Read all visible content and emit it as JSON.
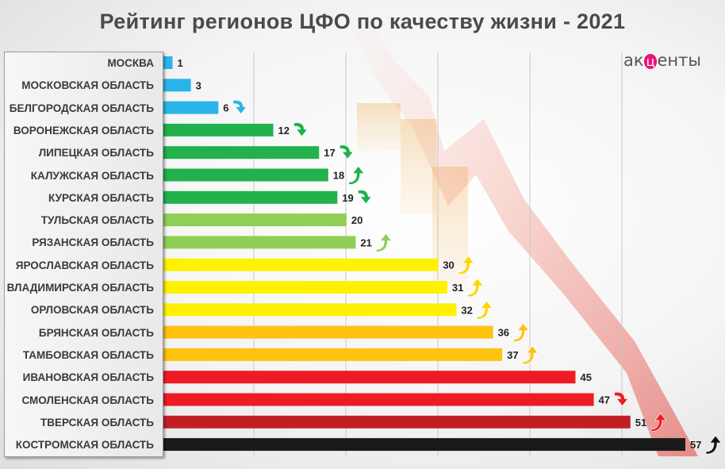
{
  "chart_data": {
    "type": "bar",
    "orientation": "horizontal",
    "title": "Рейтинг регионов ЦФО по качеству жизни - 2021",
    "xlim": [
      0,
      57
    ],
    "grid": true,
    "categories": [
      "Москва",
      "Московская область",
      "Белгородская область",
      "Воронежская область",
      "Липецкая область",
      "Калужская область",
      "Курская область",
      "Тульская область",
      "Рязанская область",
      "Ярославская область",
      "Владимирская область",
      "Орловская область",
      "Брянская область",
      "Тамбовская область",
      "Ивановская область",
      "Смоленская область",
      "Тверская область",
      "Костромская область"
    ],
    "values": [
      1,
      3,
      6,
      12,
      17,
      18,
      19,
      20,
      21,
      30,
      31,
      32,
      36,
      37,
      45,
      47,
      51,
      57
    ],
    "bar_colors": [
      "#29b5ea",
      "#29b5ea",
      "#29b5ea",
      "#22b14c",
      "#22b14c",
      "#22b14c",
      "#22b14c",
      "#8fcf55",
      "#8fcf55",
      "#fff200",
      "#fff200",
      "#fff200",
      "#ffc20e",
      "#ffc20e",
      "#ed1c24",
      "#ed1c24",
      "#c41e25",
      "#1a1a1a"
    ],
    "trend_arrows": [
      "",
      "",
      "down",
      "down",
      "down",
      "up",
      "down",
      "",
      "up",
      "up",
      "up",
      "up",
      "up",
      "up",
      "",
      "down",
      "up",
      "up"
    ],
    "arrow_colors": {
      "#29b5ea": "#29b5ea",
      "#22b14c": "#22b14c",
      "#8fcf55": "#8fcf55",
      "#fff200": "#ffd400",
      "#ffc20e": "#ffc20e",
      "#ed1c24": "#ed1c24",
      "#c41e25": "#ed1c24",
      "#1a1a1a": "#111111"
    }
  },
  "logo": {
    "text_before": "ак",
    "mark": "ц",
    "text_after": "енты"
  }
}
